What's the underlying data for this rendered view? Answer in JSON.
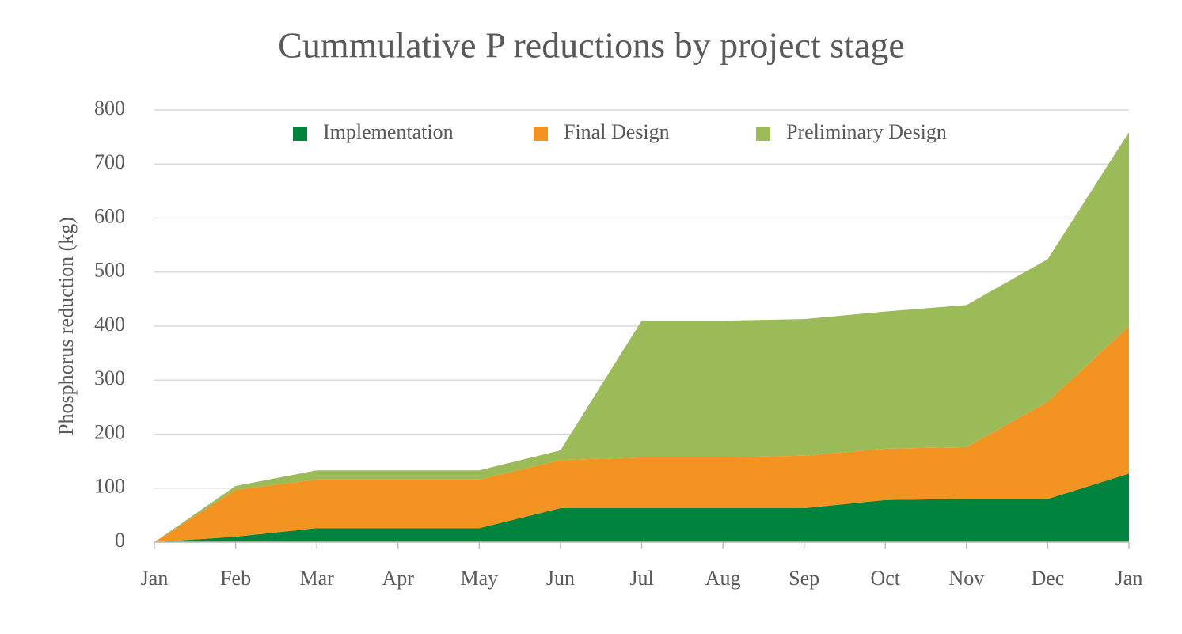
{
  "chart_data": {
    "type": "stacked_area",
    "title": "Cummulative P reductions by project stage",
    "y_label": "Phosphorus reduction (kg)",
    "categories": [
      "Jan",
      "Feb",
      "Mar",
      "Apr",
      "May",
      "Jun",
      "Jul",
      "Aug",
      "Sep",
      "Oct",
      "Nov",
      "Dec",
      "Jan"
    ],
    "series": [
      {
        "name": "Implementation",
        "color": "#00843d",
        "values": [
          0,
          10,
          26,
          26,
          26,
          63,
          63,
          63,
          63,
          78,
          80,
          80,
          127
        ]
      },
      {
        "name": "Final Design",
        "color": "#f39322",
        "values": [
          0,
          87,
          90,
          90,
          90,
          89,
          94,
          94,
          97,
          95,
          96,
          180,
          273
        ]
      },
      {
        "name": "Preliminary Design",
        "color": "#9bbb59",
        "values": [
          0,
          7,
          17,
          17,
          17,
          18,
          253,
          253,
          253,
          254,
          263,
          264,
          359
        ]
      }
    ],
    "ylim": [
      0,
      800
    ],
    "yticks": [
      0,
      100,
      200,
      300,
      400,
      500,
      600,
      700,
      800
    ],
    "grid": true,
    "legend": "top"
  }
}
